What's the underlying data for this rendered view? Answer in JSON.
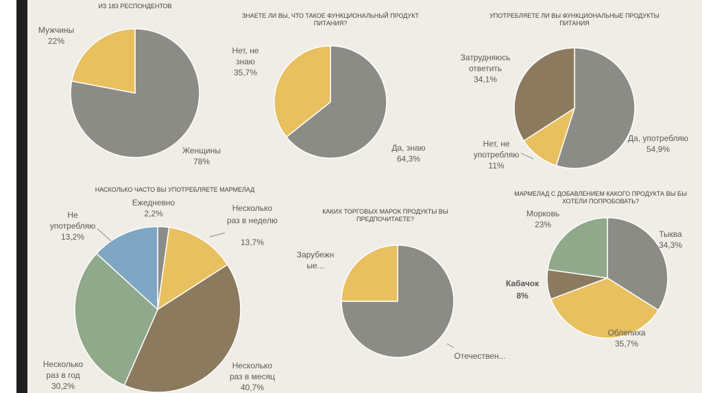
{
  "chart_data": [
    {
      "type": "pie",
      "title": [
        "ИЗ 183 РЕСПОНДЕНТОВ"
      ],
      "slices": [
        {
          "name": "Мужчины",
          "value": 22,
          "value_label": "22%",
          "color": "#e8c060"
        },
        {
          "name": "Женщины",
          "value": 78,
          "value_label": "78%",
          "color": "#8c8c87"
        }
      ]
    },
    {
      "type": "pie",
      "title": [
        "ЗНАЕТЕ ЛИ ВЫ, ЧТО ТАКОЕ ФУНКЦИОНАЛЬНЫЙ ПРОДУКТ",
        "ПИТАНИЯ?"
      ],
      "slices": [
        {
          "name": "Нет, не знаю",
          "value": 35.7,
          "value_label": "35,7%",
          "color": "#e8c060"
        },
        {
          "name": "Да, знаю",
          "value": 64.3,
          "value_label": "64,3%",
          "color": "#8c8c87"
        }
      ]
    },
    {
      "type": "pie",
      "title": [
        "УПОТРЕБЛЯЕТЕ ЛИ ВЫ ФУНКЦИОНАЛЬНЫЕ ПРОДУКТЫ",
        "ПИТАНИЯ"
      ],
      "slices": [
        {
          "name": "Затрудняюсь ответить",
          "value": 34.1,
          "value_label": "34,1%",
          "color": "#8c7a5e"
        },
        {
          "name": "Нет, не употребляю",
          "value": 11,
          "value_label": "11%",
          "color": "#e8c060"
        },
        {
          "name": "Да, употребляю",
          "value": 54.9,
          "value_label": "54,9%",
          "color": "#8c8c87"
        }
      ]
    },
    {
      "type": "pie",
      "title": [
        "НАСКОЛЬКО ЧАСТО ВЫ УПОТРЕБЛЯЕТЕ МАРМЕЛАД"
      ],
      "slices": [
        {
          "name": "Ежедневно",
          "value": 2.2,
          "value_label": "2,2%",
          "color": "#8c8c87"
        },
        {
          "name": "Несколько раз в неделю",
          "value": 13.7,
          "value_label": "13,7%",
          "color": "#e8c060"
        },
        {
          "name": "Несколько раз в месяц",
          "value": 40.7,
          "value_label": "40,7%",
          "color": "#8c7a5e"
        },
        {
          "name": "Несколько раз в год",
          "value": 30.2,
          "value_label": "30,2%",
          "color": "#8fa98a"
        },
        {
          "name": "Не употребляю",
          "value": 13.2,
          "value_label": "13,2%",
          "color": "#7fa7c4"
        }
      ]
    },
    {
      "type": "pie",
      "title": [
        "КАКИХ ТОРГОВЫХ МАРОК ПРОДУКТЫ ВЫ",
        "ПРЕДПОЧИТАЕТЕ?"
      ],
      "slices": [
        {
          "name": "Отечествен...",
          "value": 75,
          "value_label": "",
          "color": "#8c8c87"
        },
        {
          "name": "Зарубежн ые...",
          "value": 25,
          "value_label": "",
          "color": "#e8c060"
        }
      ]
    },
    {
      "type": "pie",
      "title": [
        "МАРМЕЛАД С ДОБАВЛЕНИЕМ КАКОГО ПРОДУКТА ВЫ БЫ",
        "ХОТЕЛИ ПОПРОБОВАТЬ?"
      ],
      "slices": [
        {
          "name": "Тыква",
          "value": 34.3,
          "value_label": "34,3%",
          "color": "#8c8c87"
        },
        {
          "name": "Облепиха",
          "value": 35.7,
          "value_label": "35,7%",
          "color": "#e8c060"
        },
        {
          "name": "Кабачок",
          "value": 8,
          "value_label": "8%",
          "color": "#8c7a5e"
        },
        {
          "name": "Морковь",
          "value": 23,
          "value_label": "23%",
          "color": "#8fa98a"
        }
      ]
    }
  ]
}
